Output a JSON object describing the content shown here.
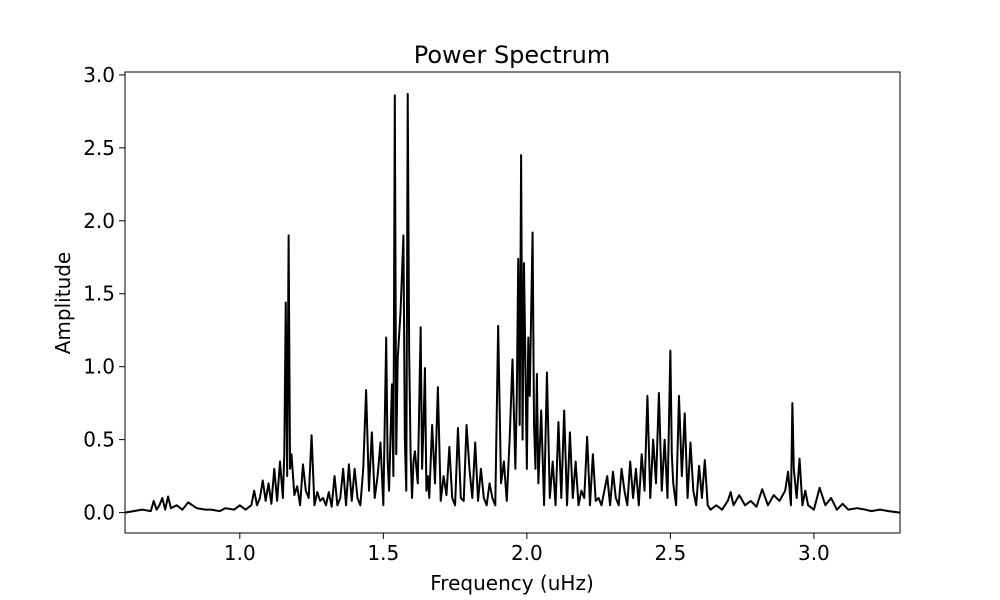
{
  "chart_data": {
    "type": "line",
    "title": "Power Spectrum",
    "xlabel": "Frequency (uHz)",
    "ylabel": "Amplitude",
    "xlim": [
      0.6,
      3.3
    ],
    "ylim": [
      -0.14,
      3.02
    ],
    "xticks": [
      1.0,
      1.5,
      2.0,
      2.5,
      3.0
    ],
    "xtick_labels": [
      "1.0",
      "1.5",
      "2.0",
      "2.5",
      "3.0"
    ],
    "yticks": [
      0.0,
      0.5,
      1.0,
      1.5,
      2.0,
      2.5,
      3.0
    ],
    "ytick_labels": [
      "0.0",
      "0.5",
      "1.0",
      "1.5",
      "2.0",
      "2.5",
      "3.0"
    ],
    "grid": false,
    "line_color": "#000000",
    "series": [
      {
        "x": [
          0.6,
          0.63,
          0.66,
          0.69,
          0.7,
          0.71,
          0.72,
          0.73,
          0.74,
          0.75,
          0.76,
          0.78,
          0.8,
          0.82,
          0.85,
          0.88,
          0.9,
          0.93,
          0.95,
          0.98,
          1.0,
          1.02,
          1.04,
          1.05,
          1.06,
          1.07,
          1.08,
          1.09,
          1.1,
          1.11,
          1.12,
          1.13,
          1.14,
          1.15,
          1.155,
          1.16,
          1.165,
          1.17,
          1.175,
          1.18,
          1.19,
          1.2,
          1.21,
          1.22,
          1.23,
          1.24,
          1.25,
          1.26,
          1.27,
          1.28,
          1.29,
          1.3,
          1.31,
          1.32,
          1.33,
          1.34,
          1.35,
          1.36,
          1.37,
          1.38,
          1.39,
          1.4,
          1.41,
          1.42,
          1.43,
          1.44,
          1.45,
          1.46,
          1.47,
          1.48,
          1.49,
          1.5,
          1.51,
          1.515,
          1.52,
          1.53,
          1.535,
          1.54,
          1.545,
          1.55,
          1.56,
          1.57,
          1.575,
          1.58,
          1.585,
          1.59,
          1.595,
          1.6,
          1.605,
          1.61,
          1.62,
          1.63,
          1.635,
          1.64,
          1.645,
          1.65,
          1.655,
          1.66,
          1.67,
          1.68,
          1.69,
          1.7,
          1.71,
          1.72,
          1.73,
          1.74,
          1.75,
          1.76,
          1.77,
          1.78,
          1.79,
          1.8,
          1.81,
          1.82,
          1.83,
          1.84,
          1.85,
          1.86,
          1.87,
          1.88,
          1.89,
          1.9,
          1.91,
          1.92,
          1.93,
          1.94,
          1.95,
          1.96,
          1.965,
          1.97,
          1.975,
          1.98,
          1.985,
          1.99,
          2.0,
          2.005,
          2.01,
          2.02,
          2.025,
          2.03,
          2.035,
          2.04,
          2.05,
          2.06,
          2.07,
          2.08,
          2.09,
          2.1,
          2.11,
          2.12,
          2.13,
          2.14,
          2.15,
          2.16,
          2.17,
          2.18,
          2.19,
          2.2,
          2.21,
          2.22,
          2.23,
          2.24,
          2.25,
          2.26,
          2.27,
          2.28,
          2.29,
          2.3,
          2.31,
          2.32,
          2.33,
          2.34,
          2.35,
          2.36,
          2.37,
          2.38,
          2.39,
          2.4,
          2.41,
          2.42,
          2.43,
          2.44,
          2.45,
          2.46,
          2.47,
          2.48,
          2.49,
          2.5,
          2.505,
          2.51,
          2.52,
          2.53,
          2.54,
          2.55,
          2.56,
          2.57,
          2.58,
          2.59,
          2.6,
          2.61,
          2.62,
          2.63,
          2.64,
          2.66,
          2.68,
          2.7,
          2.71,
          2.72,
          2.74,
          2.76,
          2.78,
          2.8,
          2.81,
          2.82,
          2.84,
          2.86,
          2.88,
          2.9,
          2.91,
          2.92,
          2.925,
          2.93,
          2.94,
          2.95,
          2.96,
          2.97,
          2.98,
          3.0,
          3.02,
          3.04,
          3.06,
          3.08,
          3.1,
          3.12,
          3.15,
          3.18,
          3.2,
          3.23,
          3.26,
          3.3
        ],
        "y": [
          0.0,
          0.01,
          0.02,
          0.01,
          0.08,
          0.02,
          0.05,
          0.1,
          0.02,
          0.11,
          0.03,
          0.05,
          0.02,
          0.07,
          0.03,
          0.02,
          0.02,
          0.01,
          0.03,
          0.02,
          0.05,
          0.02,
          0.05,
          0.15,
          0.05,
          0.1,
          0.22,
          0.08,
          0.2,
          0.06,
          0.3,
          0.08,
          0.35,
          0.1,
          0.4,
          1.44,
          0.25,
          1.9,
          0.3,
          0.4,
          0.12,
          0.18,
          0.05,
          0.33,
          0.15,
          0.1,
          0.53,
          0.05,
          0.14,
          0.08,
          0.1,
          0.05,
          0.14,
          0.04,
          0.25,
          0.05,
          0.1,
          0.3,
          0.05,
          0.33,
          0.08,
          0.3,
          0.1,
          0.05,
          0.3,
          0.84,
          0.15,
          0.55,
          0.1,
          0.25,
          0.48,
          0.05,
          1.2,
          0.35,
          0.15,
          0.88,
          0.25,
          2.86,
          0.4,
          1.05,
          1.38,
          1.9,
          0.5,
          0.15,
          2.87,
          1.1,
          0.4,
          0.1,
          0.35,
          0.42,
          0.2,
          1.27,
          0.3,
          0.6,
          0.99,
          0.15,
          0.25,
          0.1,
          0.6,
          0.2,
          0.86,
          0.08,
          0.25,
          0.12,
          0.45,
          0.1,
          0.05,
          0.58,
          0.1,
          0.08,
          0.6,
          0.3,
          0.1,
          0.48,
          0.08,
          0.3,
          0.1,
          0.05,
          0.2,
          0.1,
          0.05,
          1.28,
          0.2,
          0.35,
          0.08,
          0.5,
          1.05,
          0.3,
          0.8,
          1.74,
          0.6,
          2.45,
          0.5,
          1.71,
          0.3,
          1.2,
          0.8,
          1.92,
          0.6,
          0.3,
          0.95,
          0.2,
          0.7,
          0.05,
          0.96,
          0.1,
          0.35,
          0.05,
          0.62,
          0.1,
          0.7,
          0.05,
          0.55,
          0.1,
          0.35,
          0.05,
          0.15,
          0.1,
          0.52,
          0.05,
          0.4,
          0.08,
          0.1,
          0.05,
          0.15,
          0.25,
          0.05,
          0.28,
          0.1,
          0.05,
          0.3,
          0.15,
          0.05,
          0.35,
          0.1,
          0.3,
          0.05,
          0.4,
          0.15,
          0.8,
          0.1,
          0.5,
          0.2,
          0.82,
          0.15,
          0.5,
          0.1,
          1.11,
          0.4,
          0.2,
          0.05,
          0.8,
          0.25,
          0.68,
          0.1,
          0.48,
          0.15,
          0.05,
          0.32,
          0.1,
          0.36,
          0.05,
          0.02,
          0.05,
          0.02,
          0.08,
          0.14,
          0.05,
          0.12,
          0.05,
          0.08,
          0.04,
          0.1,
          0.16,
          0.05,
          0.12,
          0.08,
          0.15,
          0.28,
          0.05,
          0.75,
          0.3,
          0.1,
          0.37,
          0.05,
          0.15,
          0.05,
          0.02,
          0.17,
          0.05,
          0.1,
          0.02,
          0.06,
          0.02,
          0.03,
          0.02,
          0.01,
          0.02,
          0.01,
          0.0
        ]
      }
    ]
  }
}
